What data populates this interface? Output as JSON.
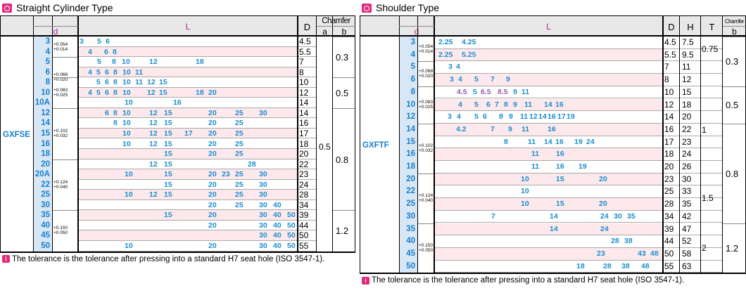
{
  "left": {
    "title": "Straight Cylinder Type",
    "headers": {
      "d": "d",
      "L": "L",
      "D": "D",
      "chamfer": "Chamfer",
      "a": "a",
      "b": "b"
    },
    "product": "GXFSE",
    "chamfer_a": "0.5",
    "rows": [
      {
        "d": "3",
        "L": [
          "3",
          "5",
          "6"
        ],
        "D": "4.5"
      },
      {
        "d": "4",
        "L": [
          "4",
          "6",
          "8"
        ],
        "D": "5.5"
      },
      {
        "d": "5",
        "L": [
          "5",
          "8",
          "10",
          "12",
          "18"
        ],
        "D": "7"
      },
      {
        "d": "6",
        "L": [
          "4",
          "5",
          "6",
          "8",
          "10",
          "11"
        ],
        "D": "8"
      },
      {
        "d": "8",
        "L": [
          "5",
          "6",
          "8",
          "10",
          "11",
          "12",
          "15"
        ],
        "D": "10"
      },
      {
        "d": "10",
        "L": [
          "4",
          "5",
          "6",
          "8",
          "10",
          "12",
          "15",
          "18",
          "20"
        ],
        "D": "12"
      },
      {
        "d": "10A",
        "L": [
          "10",
          "16"
        ],
        "D": "14"
      },
      {
        "d": "12",
        "L": [
          "6",
          "8",
          "10",
          "12",
          "15",
          "20",
          "25",
          "30"
        ],
        "D": "14"
      },
      {
        "d": "14",
        "L": [
          "8",
          "10",
          "12",
          "15",
          "20",
          "25"
        ],
        "D": "16"
      },
      {
        "d": "15",
        "L": [
          "10",
          "12",
          "15",
          "17",
          "20",
          "25"
        ],
        "D": "17"
      },
      {
        "d": "16",
        "L": [
          "10",
          "12",
          "15",
          "20",
          "25"
        ],
        "D": "18"
      },
      {
        "d": "18",
        "L": [
          "15",
          "20",
          "25"
        ],
        "D": "20"
      },
      {
        "d": "20",
        "L": [
          "12",
          "15",
          "28"
        ],
        "D": "22"
      },
      {
        "d": "20A",
        "L": [
          "10",
          "15",
          "20",
          "23",
          "25",
          "30"
        ],
        "D": "23"
      },
      {
        "d": "22",
        "L": [
          "15",
          "20",
          "25",
          "30"
        ],
        "D": "24"
      },
      {
        "d": "25",
        "L": [
          "10",
          "12",
          "15",
          "20",
          "25",
          "30"
        ],
        "D": "28"
      },
      {
        "d": "30",
        "L": [
          "20",
          "25",
          "30",
          "40"
        ],
        "D": "34"
      },
      {
        "d": "35",
        "L": [
          "15",
          "20",
          "30",
          "40",
          "50"
        ],
        "D": "39"
      },
      {
        "d": "40",
        "L": [
          "20",
          "30",
          "40",
          "50"
        ],
        "D": "44"
      },
      {
        "d": "45",
        "L": [
          "30",
          "40",
          "50"
        ],
        "D": "50"
      },
      {
        "d": "50",
        "L": [
          "10",
          "20",
          "30",
          "40",
          "50"
        ],
        "D": "55"
      }
    ],
    "tolerances": [
      {
        "upper": "+0.054",
        "lower": "+0.014"
      },
      {
        "upper": "+0.068",
        "lower": "+0.020"
      },
      {
        "upper": "+0.083",
        "lower": "+0.025"
      },
      {
        "upper": "+0.102",
        "lower": "+0.032"
      },
      {
        "upper": "+0.124",
        "lower": "+0.040"
      },
      {
        "upper": "+0.150",
        "lower": "+0.050"
      }
    ],
    "chamfer_b": [
      "0.3",
      "0.5",
      "0.8",
      "1.2"
    ],
    "footnote": "The tolerance is the tolerance after pressing into a standard H7 seat hole (ISO 3547-1)."
  },
  "right": {
    "title": "Shoulder Type",
    "headers": {
      "d": "d",
      "L": "L",
      "D": "D",
      "H": "H",
      "T": "T",
      "chamfer": "Chamfer",
      "b": "b"
    },
    "product": "GXFTF",
    "rows": [
      {
        "d": "3",
        "L": [
          "2.25",
          "4.25"
        ],
        "D": "4.5",
        "H": "7.5"
      },
      {
        "d": "4",
        "L": [
          "2.25",
          "5.25"
        ],
        "D": "5.5",
        "H": "9.5"
      },
      {
        "d": "5",
        "L": [
          "3",
          "4"
        ],
        "D": "7",
        "H": "11"
      },
      {
        "d": "6",
        "L": [
          "3",
          "4",
          "5",
          "7",
          "9"
        ],
        "D": "8",
        "H": "12"
      },
      {
        "d": "8",
        "L": [
          "4.5",
          "5",
          "6.5",
          "8.5",
          "9",
          "11"
        ],
        "D": "10",
        "H": "15"
      },
      {
        "d": "10",
        "L": [
          "4",
          "5",
          "6",
          "7",
          "8",
          "9",
          "11",
          "14",
          "16"
        ],
        "D": "12",
        "H": "18"
      },
      {
        "d": "12",
        "L": [
          "3",
          "4",
          "5",
          "6",
          "8",
          "9",
          "11",
          "12",
          "14",
          "16",
          "17",
          "19"
        ],
        "D": "14",
        "H": "20"
      },
      {
        "d": "14",
        "L": [
          "4.2",
          "7",
          "9",
          "11",
          "16"
        ],
        "D": "16",
        "H": "22"
      },
      {
        "d": "15",
        "L": [
          "8",
          "11",
          "14",
          "16",
          "19",
          "24"
        ],
        "D": "17",
        "H": "23"
      },
      {
        "d": "16",
        "L": [
          "11",
          "16"
        ],
        "D": "18",
        "H": "24"
      },
      {
        "d": "18",
        "L": [
          "11",
          "16",
          "19"
        ],
        "D": "20",
        "H": "26"
      },
      {
        "d": "20",
        "L": [
          "10",
          "15",
          "20"
        ],
        "D": "23",
        "H": "30"
      },
      {
        "d": "22",
        "L": [
          "10"
        ],
        "D": "25",
        "H": "33"
      },
      {
        "d": "25",
        "L": [
          "10",
          "15",
          "20"
        ],
        "D": "28",
        "H": "35"
      },
      {
        "d": "30",
        "L": [
          "7",
          "14",
          "24",
          "30",
          "35"
        ],
        "D": "34",
        "H": "42"
      },
      {
        "d": "35",
        "L": [
          "14",
          "24"
        ],
        "D": "39",
        "H": "47"
      },
      {
        "d": "40",
        "L": [
          "28",
          "38"
        ],
        "D": "44",
        "H": "52"
      },
      {
        "d": "45",
        "L": [
          "23",
          "43",
          "48"
        ],
        "D": "50",
        "H": "58"
      },
      {
        "d": "50",
        "L": [
          "18",
          "28",
          "38",
          "48"
        ],
        "D": "55",
        "H": "63"
      }
    ],
    "tolerances": [
      {
        "upper": "+0.054",
        "lower": "+0.014"
      },
      {
        "upper": "+0.068",
        "lower": "+0.020"
      },
      {
        "upper": "+0.083",
        "lower": "+0.025"
      },
      {
        "upper": "+0.102",
        "lower": "+0.032"
      },
      {
        "upper": "+0.124",
        "lower": "+0.040"
      },
      {
        "upper": "+0.150",
        "lower": "+0.050"
      }
    ],
    "T": [
      "0.75",
      "1",
      "1.5",
      "2"
    ],
    "chamfer_b": [
      "0.3",
      "0.5",
      "0.8",
      "1.2"
    ],
    "footnote": "The tolerance is the tolerance after pressing into a standard H7 seat hole (ISO 3547-1)."
  }
}
